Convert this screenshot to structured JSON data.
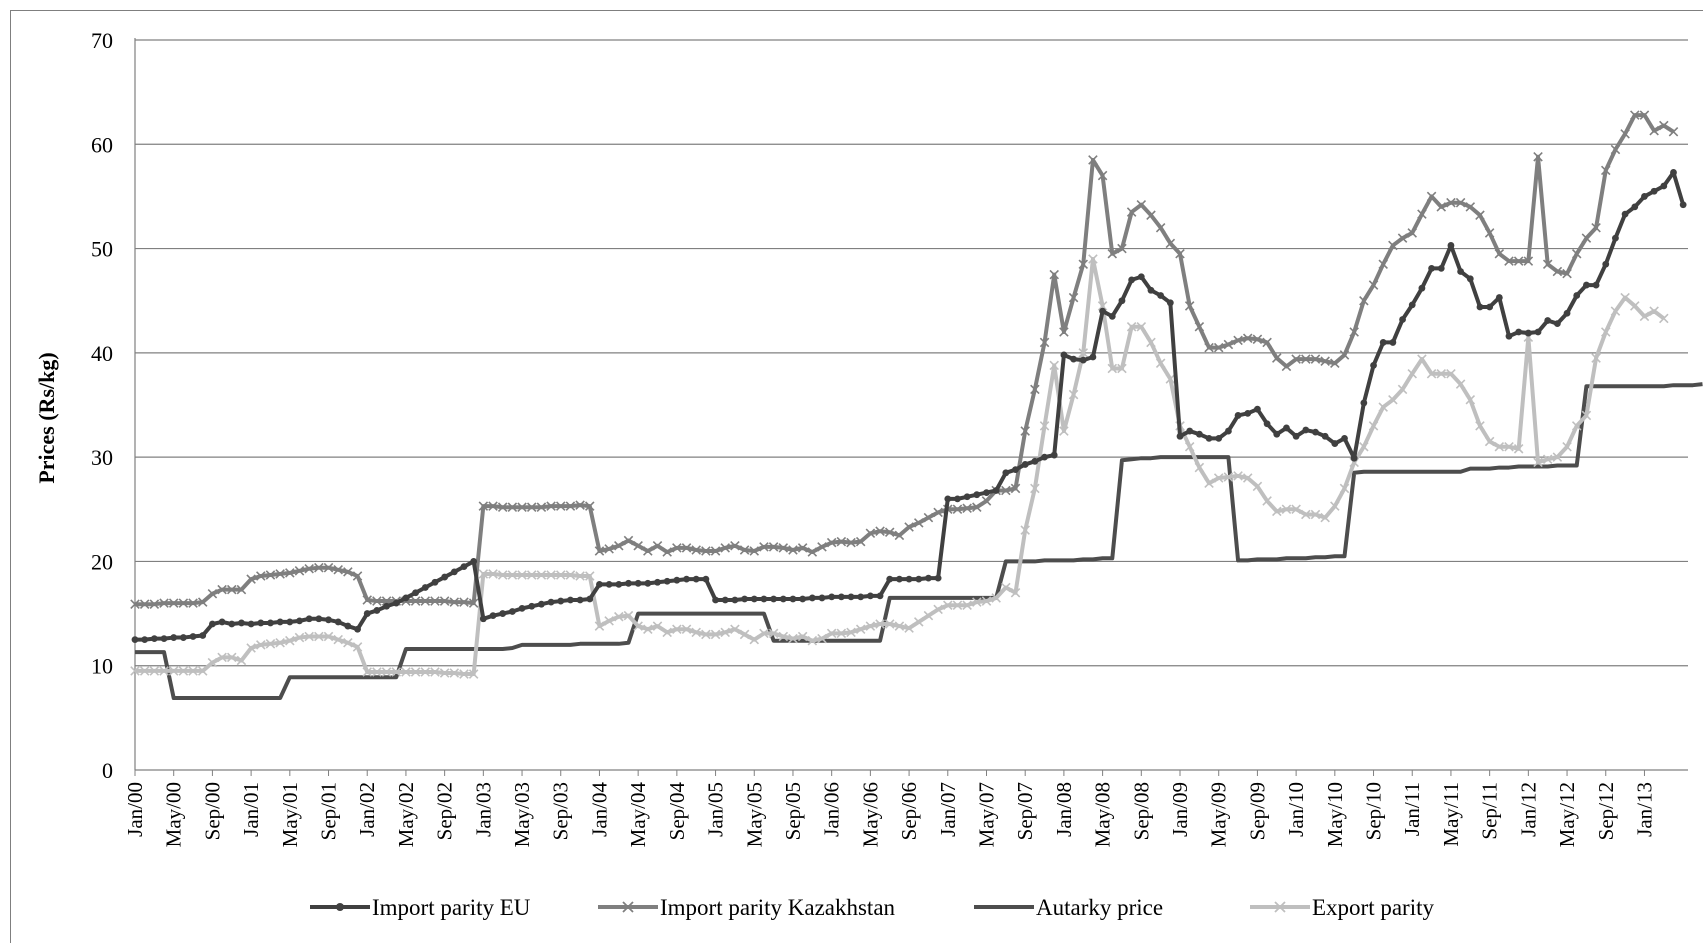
{
  "chart_data": {
    "type": "line",
    "title": "",
    "xlabel": "",
    "ylabel": "Prices (Rs/kg)",
    "ylim": [
      0,
      70
    ],
    "yticks": [
      0,
      10,
      20,
      30,
      40,
      50,
      60,
      70
    ],
    "grid": "horizontal",
    "legend_position": "bottom",
    "x_tick_labels": [
      "Jan/00",
      "May/00",
      "Sep/00",
      "Jan/01",
      "May/01",
      "Sep/01",
      "Jan/02",
      "May/02",
      "Sep/02",
      "Jan/03",
      "May/03",
      "Sep/03",
      "Jan/04",
      "May/04",
      "Sep/04",
      "Jan/05",
      "May/05",
      "Sep/05",
      "Jan/06",
      "May/06",
      "Sep/06",
      "Jan/07",
      "May/07",
      "Sep/07",
      "Jan/08",
      "May/08",
      "Sep/08",
      "Jan/09",
      "May/09",
      "Sep/09",
      "Jan/10",
      "May/10",
      "Sep/10",
      "Jan/11",
      "May/11",
      "Sep/11",
      "Jan/12",
      "May/12",
      "Sep/12",
      "Jan/13"
    ],
    "x_start": "Jan/00",
    "x_end": "Jun/13",
    "series": [
      {
        "name": "Import parity EU",
        "color": "#404040",
        "marker": "dot",
        "values": [
          12.5,
          12.5,
          12.6,
          12.6,
          12.7,
          12.7,
          12.8,
          12.9,
          14,
          14.2,
          14,
          14.1,
          14,
          14.1,
          14.1,
          14.2,
          14.2,
          14.3,
          14.5,
          14.5,
          14.4,
          14.2,
          13.8,
          13.5,
          15,
          15.3,
          15.7,
          16,
          16.5,
          17,
          17.5,
          18,
          18.5,
          19,
          19.5,
          20,
          14.5,
          14.8,
          15,
          15.2,
          15.5,
          15.7,
          15.9,
          16.1,
          16.2,
          16.3,
          16.3,
          16.4,
          17.8,
          17.8,
          17.8,
          17.9,
          17.9,
          17.9,
          18,
          18.1,
          18.2,
          18.3,
          18.3,
          18.3,
          16.3,
          16.3,
          16.3,
          16.4,
          16.4,
          16.4,
          16.4,
          16.4,
          16.4,
          16.4,
          16.5,
          16.5,
          16.6,
          16.6,
          16.6,
          16.6,
          16.7,
          16.7,
          18.3,
          18.3,
          18.3,
          18.3,
          18.4,
          18.4,
          26,
          26,
          26.2,
          26.4,
          26.6,
          26.8,
          28.5,
          28.8,
          29.3,
          29.6,
          30,
          30.2,
          39.8,
          39.4,
          39.3,
          39.6,
          44,
          43.5,
          45,
          47,
          47.3,
          46,
          45.5,
          44.8,
          32,
          32.5,
          32.2,
          31.8,
          31.8,
          32.5,
          34,
          34.2,
          34.6,
          33.2,
          32.2,
          32.8,
          32,
          32.6,
          32.4,
          32,
          31.3,
          31.8,
          29.9,
          35.2,
          38.8,
          41,
          41,
          43.2,
          44.6,
          46.2,
          48.1,
          48.1,
          50.3,
          47.8,
          47.1,
          44.4,
          44.4,
          45.3,
          41.6,
          42,
          41.9,
          42,
          43.1,
          42.8,
          43.8,
          45.5,
          46.5,
          46.5,
          48.5,
          51,
          53.3,
          54,
          55,
          55.5,
          56,
          57.3,
          54.2
        ]
      },
      {
        "name": "Import parity Kazakhstan",
        "color": "#7f7f7f",
        "marker": "x",
        "values": [
          15.9,
          15.9,
          15.9,
          16,
          16,
          16,
          16,
          16.1,
          16.9,
          17.3,
          17.3,
          17.3,
          18.3,
          18.6,
          18.7,
          18.8,
          18.9,
          19.1,
          19.3,
          19.4,
          19.4,
          19.2,
          19,
          18.6,
          16.3,
          16.2,
          16.2,
          16.2,
          16.2,
          16.2,
          16.2,
          16.2,
          16.2,
          16.1,
          16.1,
          16,
          25.3,
          25.3,
          25.2,
          25.2,
          25.2,
          25.2,
          25.2,
          25.3,
          25.3,
          25.3,
          25.4,
          25.3,
          21,
          21.2,
          21.5,
          22,
          21.5,
          21,
          21.5,
          20.9,
          21.3,
          21.3,
          21.1,
          21,
          21,
          21.3,
          21.5,
          21.1,
          21,
          21.4,
          21.4,
          21.3,
          21.1,
          21.3,
          20.9,
          21.4,
          21.8,
          21.9,
          21.8,
          21.9,
          22.7,
          22.9,
          22.8,
          22.5,
          23.3,
          23.7,
          24.2,
          24.7,
          25,
          25,
          25.1,
          25.2,
          25.8,
          26.8,
          26.8,
          27,
          32.5,
          36.5,
          41,
          47.5,
          42,
          45.3,
          48.5,
          58.5,
          57,
          49.5,
          50,
          53.5,
          54.2,
          53.2,
          52,
          50.5,
          49.5,
          44.5,
          42.5,
          40.5,
          40.5,
          40.8,
          41.2,
          41.4,
          41.3,
          41,
          39.5,
          38.7,
          39.4,
          39.4,
          39.4,
          39.2,
          39,
          39.8,
          42,
          45,
          46.5,
          48.5,
          50.3,
          51,
          51.5,
          53.3,
          55,
          54,
          54.4,
          54.4,
          54,
          53.2,
          51.5,
          49.5,
          48.8,
          48.8,
          48.8,
          58.8,
          48.5,
          47.8,
          47.6,
          49.5,
          51,
          52,
          57.5,
          59.5,
          61,
          62.8,
          62.8,
          61.3,
          61.8,
          61.2
        ]
      },
      {
        "name": "Autarky price",
        "color": "#4d4d4d",
        "marker": "none",
        "values": [
          11.3,
          11.3,
          11.3,
          11.3,
          6.9,
          6.9,
          6.9,
          6.9,
          6.9,
          6.9,
          6.9,
          6.9,
          6.9,
          6.9,
          6.9,
          6.9,
          8.9,
          8.9,
          8.9,
          8.9,
          8.9,
          8.9,
          8.9,
          8.9,
          8.9,
          8.9,
          8.9,
          8.9,
          11.6,
          11.6,
          11.6,
          11.6,
          11.6,
          11.6,
          11.6,
          11.6,
          11.6,
          11.6,
          11.6,
          11.7,
          12,
          12,
          12,
          12,
          12,
          12,
          12.1,
          12.1,
          12.1,
          12.1,
          12.1,
          12.2,
          15,
          15,
          15,
          15,
          15,
          15,
          15,
          15,
          15,
          15,
          15,
          15,
          15,
          15,
          12.4,
          12.4,
          12.4,
          12.4,
          12.4,
          12.4,
          12.4,
          12.4,
          12.4,
          12.4,
          12.4,
          12.4,
          16.5,
          16.5,
          16.5,
          16.5,
          16.5,
          16.5,
          16.5,
          16.5,
          16.5,
          16.5,
          16.5,
          16.5,
          20,
          20,
          20,
          20,
          20.1,
          20.1,
          20.1,
          20.1,
          20.2,
          20.2,
          20.3,
          20.3,
          29.7,
          29.8,
          29.9,
          29.9,
          30,
          30,
          30,
          30,
          30,
          30,
          30,
          30,
          20.1,
          20.1,
          20.2,
          20.2,
          20.2,
          20.3,
          20.3,
          20.3,
          20.4,
          20.4,
          20.5,
          20.5,
          28.5,
          28.6,
          28.6,
          28.6,
          28.6,
          28.6,
          28.6,
          28.6,
          28.6,
          28.6,
          28.6,
          28.6,
          28.9,
          28.9,
          28.9,
          29,
          29,
          29.1,
          29.1,
          29.1,
          29.1,
          29.2,
          29.2,
          29.2,
          36.8,
          36.8,
          36.8,
          36.8,
          36.8,
          36.8,
          36.8,
          36.8,
          36.8,
          36.9,
          36.9,
          36.9,
          37
        ]
      },
      {
        "name": "Export parity",
        "color": "#bfbfbf",
        "marker": "x",
        "values": [
          9.5,
          9.5,
          9.5,
          9.5,
          9.5,
          9.5,
          9.5,
          9.5,
          10.3,
          10.8,
          10.8,
          10.5,
          11.7,
          12,
          12.1,
          12.2,
          12.4,
          12.7,
          12.8,
          12.8,
          12.8,
          12.5,
          12.2,
          11.8,
          9.4,
          9.4,
          9.4,
          9.4,
          9.4,
          9.4,
          9.4,
          9.4,
          9.3,
          9.3,
          9.2,
          9.2,
          18.8,
          18.8,
          18.7,
          18.7,
          18.7,
          18.7,
          18.7,
          18.7,
          18.7,
          18.7,
          18.6,
          18.6,
          13.8,
          14.3,
          14.7,
          14.8,
          13.8,
          13.5,
          13.8,
          13.2,
          13.5,
          13.5,
          13.2,
          13,
          13,
          13.2,
          13.5,
          13,
          12.5,
          13.1,
          13.1,
          12.8,
          12.6,
          12.8,
          12.4,
          12.6,
          13.1,
          13.1,
          13.2,
          13.5,
          13.8,
          14,
          14,
          13.8,
          13.6,
          14.2,
          14.8,
          15.4,
          15.8,
          15.8,
          15.8,
          16.1,
          16.2,
          16.5,
          17.5,
          17,
          23,
          27,
          33,
          38.8,
          32.5,
          36,
          40,
          49,
          44.5,
          38.5,
          38.5,
          42.5,
          42.5,
          41,
          39,
          37.5,
          33,
          31,
          29,
          27.5,
          28,
          28.1,
          28.2,
          28,
          27.2,
          25.8,
          24.8,
          25,
          25,
          24.5,
          24.5,
          24.2,
          25.3,
          27,
          29.5,
          31,
          33,
          34.8,
          35.5,
          36.5,
          38,
          39.4,
          38,
          38,
          38,
          37,
          35.5,
          33,
          31.5,
          31,
          31,
          30.8,
          41.5,
          29.5,
          29.8,
          30,
          31,
          33,
          34,
          39.5,
          42,
          44,
          45.3,
          44.5,
          43.5,
          44,
          43.3
        ]
      }
    ]
  }
}
